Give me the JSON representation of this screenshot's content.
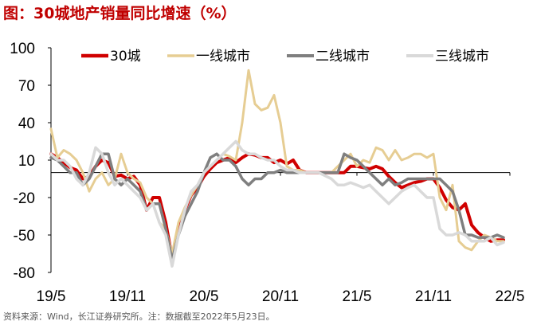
{
  "title": "图：30城地产销量同比增速（%）",
  "source": "资料来源：Wind，长江证券研究所。注：数据截至2022年5月23日。",
  "chart_data": {
    "type": "line",
    "title": "图：30城地产销量同比增速（%）",
    "xlabel": "",
    "ylabel": "",
    "ylim": [
      -80,
      100
    ],
    "yticks": [
      -80,
      -50,
      -20,
      10,
      40,
      70,
      100
    ],
    "xlim": [
      0,
      36
    ],
    "x_tick_labels": [
      {
        "x": 0,
        "label": "19/5"
      },
      {
        "x": 6,
        "label": "19/11"
      },
      {
        "x": 12,
        "label": "20/5"
      },
      {
        "x": 18,
        "label": "20/11"
      },
      {
        "x": 24,
        "label": "21/5"
      },
      {
        "x": 30,
        "label": "21/11"
      },
      {
        "x": 36,
        "label": "22/5"
      }
    ],
    "grid": false,
    "legend": "top",
    "series": [
      {
        "name": "30城",
        "color": "#d00000",
        "width": 4,
        "points": [
          [
            0,
            15
          ],
          [
            0.5,
            12
          ],
          [
            1,
            8
          ],
          [
            1.5,
            4
          ],
          [
            2,
            2
          ],
          [
            2.5,
            -5
          ],
          [
            3,
            -3
          ],
          [
            3.5,
            5
          ],
          [
            4,
            10
          ],
          [
            4.5,
            8
          ],
          [
            5,
            -3
          ],
          [
            5.5,
            -2
          ],
          [
            6,
            -5
          ],
          [
            6.5,
            -3
          ],
          [
            7,
            -10
          ],
          [
            7.5,
            -30
          ],
          [
            8,
            -20
          ],
          [
            8.5,
            -20
          ],
          [
            9,
            -40
          ],
          [
            9.5,
            -68
          ],
          [
            10,
            -45
          ],
          [
            10.5,
            -30
          ],
          [
            11,
            -18
          ],
          [
            11.5,
            -12
          ],
          [
            12,
            -3
          ],
          [
            12.5,
            3
          ],
          [
            13,
            8
          ],
          [
            13.5,
            10
          ],
          [
            14,
            12
          ],
          [
            14.5,
            8
          ],
          [
            15,
            12
          ],
          [
            15.5,
            15
          ],
          [
            16,
            14
          ],
          [
            16.5,
            12
          ],
          [
            17,
            12
          ],
          [
            17.5,
            8
          ],
          [
            18,
            10
          ],
          [
            18.5,
            7
          ],
          [
            19,
            10
          ],
          [
            19.5,
            2
          ],
          [
            20,
            0
          ],
          [
            21,
            0
          ],
          [
            22,
            0
          ],
          [
            23,
            0
          ],
          [
            23.5,
            5
          ],
          [
            24,
            5
          ],
          [
            24.5,
            4
          ],
          [
            25,
            3
          ],
          [
            25.5,
            5
          ],
          [
            26,
            3
          ],
          [
            26.5,
            -3
          ],
          [
            27,
            -8
          ],
          [
            27.5,
            -12
          ],
          [
            28,
            -10
          ],
          [
            28.5,
            -8
          ],
          [
            29,
            -7
          ],
          [
            29.5,
            -5
          ],
          [
            30,
            -5
          ],
          [
            30.5,
            -12
          ],
          [
            31,
            -22
          ],
          [
            31.5,
            -28
          ],
          [
            32,
            -30
          ],
          [
            32.5,
            -25
          ],
          [
            33,
            -42
          ],
          [
            33.5,
            -48
          ],
          [
            34,
            -52
          ],
          [
            34.5,
            -55
          ],
          [
            35,
            -54
          ],
          [
            35.5,
            -54
          ]
        ]
      },
      {
        "name": "一线城市",
        "color": "#e6cd93",
        "width": 3,
        "points": [
          [
            0,
            35
          ],
          [
            0.5,
            12
          ],
          [
            1,
            18
          ],
          [
            1.5,
            15
          ],
          [
            2,
            10
          ],
          [
            2.5,
            0
          ],
          [
            3,
            -15
          ],
          [
            3.5,
            -5
          ],
          [
            4,
            0
          ],
          [
            4.5,
            -10
          ],
          [
            5,
            -5
          ],
          [
            5.5,
            15
          ],
          [
            6,
            0
          ],
          [
            6.5,
            -5
          ],
          [
            7,
            -8
          ],
          [
            7.5,
            -20
          ],
          [
            8,
            -25
          ],
          [
            8.5,
            -40
          ],
          [
            9,
            -45
          ],
          [
            9.5,
            -65
          ],
          [
            10,
            -40
          ],
          [
            10.5,
            -28
          ],
          [
            11,
            -18
          ],
          [
            11.5,
            -10
          ],
          [
            12,
            0
          ],
          [
            12.5,
            5
          ],
          [
            13,
            10
          ],
          [
            13.5,
            15
          ],
          [
            14,
            13
          ],
          [
            14.5,
            10
          ],
          [
            15,
            40
          ],
          [
            15.5,
            82
          ],
          [
            16,
            55
          ],
          [
            16.5,
            50
          ],
          [
            17,
            52
          ],
          [
            17.5,
            62
          ],
          [
            18,
            40
          ],
          [
            18.5,
            5
          ],
          [
            19,
            2
          ],
          [
            19.5,
            2
          ],
          [
            20,
            0
          ],
          [
            21,
            0
          ],
          [
            22,
            0
          ],
          [
            22.5,
            5
          ],
          [
            23,
            10
          ],
          [
            23.5,
            15
          ],
          [
            24,
            5
          ],
          [
            24.5,
            10
          ],
          [
            25,
            8
          ],
          [
            25.5,
            20
          ],
          [
            26,
            18
          ],
          [
            26.5,
            10
          ],
          [
            27,
            18
          ],
          [
            27.5,
            10
          ],
          [
            28,
            12
          ],
          [
            28.5,
            15
          ],
          [
            29,
            15
          ],
          [
            29.5,
            12
          ],
          [
            30,
            15
          ],
          [
            30.5,
            -20
          ],
          [
            31,
            -30
          ],
          [
            31.5,
            -10
          ],
          [
            32,
            -55
          ],
          [
            32.5,
            -60
          ],
          [
            33,
            -62
          ],
          [
            33.5,
            -55
          ],
          [
            34,
            -50
          ],
          [
            34.5,
            -52
          ],
          [
            35,
            -55
          ],
          [
            35.5,
            -55
          ]
        ]
      },
      {
        "name": "二线城市",
        "color": "#7f7f7f",
        "width": 3.5,
        "points": [
          [
            0,
            12
          ],
          [
            0.5,
            10
          ],
          [
            1,
            5
          ],
          [
            1.5,
            0
          ],
          [
            2,
            0
          ],
          [
            2.5,
            -10
          ],
          [
            3,
            -5
          ],
          [
            3.5,
            5
          ],
          [
            4,
            15
          ],
          [
            4.5,
            15
          ],
          [
            5,
            -5
          ],
          [
            5.5,
            -10
          ],
          [
            6,
            -5
          ],
          [
            6.5,
            -10
          ],
          [
            7,
            -15
          ],
          [
            7.5,
            -30
          ],
          [
            8,
            -25
          ],
          [
            8.5,
            -25
          ],
          [
            9,
            -45
          ],
          [
            9.5,
            -70
          ],
          [
            10,
            -50
          ],
          [
            10.5,
            -35
          ],
          [
            11,
            -25
          ],
          [
            11.5,
            -15
          ],
          [
            12,
            0
          ],
          [
            12.5,
            12
          ],
          [
            13,
            15
          ],
          [
            13.5,
            10
          ],
          [
            14,
            10
          ],
          [
            14.5,
            5
          ],
          [
            15,
            -5
          ],
          [
            15.5,
            -10
          ],
          [
            16,
            -5
          ],
          [
            16.5,
            -5
          ],
          [
            17,
            0
          ],
          [
            17.5,
            0
          ],
          [
            18,
            2
          ],
          [
            18.5,
            0
          ],
          [
            19,
            0
          ],
          [
            19.5,
            0
          ],
          [
            20,
            0
          ],
          [
            21,
            0
          ],
          [
            22,
            0
          ],
          [
            22.5,
            0
          ],
          [
            23,
            15
          ],
          [
            23.5,
            12
          ],
          [
            24,
            10
          ],
          [
            24.5,
            5
          ],
          [
            25,
            0
          ],
          [
            25.5,
            -5
          ],
          [
            26,
            -10
          ],
          [
            26.5,
            -5
          ],
          [
            27,
            -10
          ],
          [
            27.5,
            -8
          ],
          [
            28,
            -5
          ],
          [
            28.5,
            -5
          ],
          [
            29,
            -5
          ],
          [
            29.5,
            -5
          ],
          [
            30,
            -5
          ],
          [
            30.5,
            -5
          ],
          [
            31,
            -10
          ],
          [
            31.5,
            -15
          ],
          [
            32,
            -30
          ],
          [
            32.5,
            -50
          ],
          [
            33,
            -50
          ],
          [
            33.5,
            -52
          ],
          [
            34,
            -52
          ],
          [
            34.5,
            -52
          ],
          [
            35,
            -50
          ],
          [
            35.5,
            -52
          ]
        ]
      },
      {
        "name": "三线城市",
        "color": "#d9d9d9",
        "width": 3.5,
        "points": [
          [
            0,
            15
          ],
          [
            0.5,
            10
          ],
          [
            1,
            10
          ],
          [
            1.5,
            5
          ],
          [
            2,
            -5
          ],
          [
            2.5,
            -10
          ],
          [
            3,
            0
          ],
          [
            3.5,
            20
          ],
          [
            4,
            15
          ],
          [
            4.5,
            0
          ],
          [
            5,
            -10
          ],
          [
            5.5,
            -5
          ],
          [
            6,
            -10
          ],
          [
            6.5,
            -15
          ],
          [
            7,
            -20
          ],
          [
            7.5,
            -30
          ],
          [
            8,
            -25
          ],
          [
            8.5,
            -40
          ],
          [
            9,
            -50
          ],
          [
            9.5,
            -75
          ],
          [
            10,
            -50
          ],
          [
            10.5,
            -30
          ],
          [
            11,
            -15
          ],
          [
            11.5,
            -10
          ],
          [
            12,
            0
          ],
          [
            12.5,
            5
          ],
          [
            13,
            10
          ],
          [
            13.5,
            15
          ],
          [
            14,
            20
          ],
          [
            14.5,
            25
          ],
          [
            15,
            18
          ],
          [
            15.5,
            15
          ],
          [
            16,
            15
          ],
          [
            16.5,
            12
          ],
          [
            17,
            10
          ],
          [
            17.5,
            10
          ],
          [
            18,
            5
          ],
          [
            18.5,
            2
          ],
          [
            19,
            2
          ],
          [
            19.5,
            0
          ],
          [
            20,
            0
          ],
          [
            21,
            0
          ],
          [
            22,
            -5
          ],
          [
            22.5,
            -10
          ],
          [
            23,
            -10
          ],
          [
            23.5,
            -8
          ],
          [
            24,
            -10
          ],
          [
            24.5,
            -12
          ],
          [
            25,
            -10
          ],
          [
            25.5,
            -15
          ],
          [
            26,
            -20
          ],
          [
            26.5,
            -25
          ],
          [
            27,
            -20
          ],
          [
            27.5,
            -15
          ],
          [
            28,
            -12
          ],
          [
            28.5,
            -10
          ],
          [
            29,
            -15
          ],
          [
            29.5,
            -20
          ],
          [
            30,
            -20
          ],
          [
            30.5,
            -45
          ],
          [
            31,
            -50
          ],
          [
            31.5,
            -50
          ],
          [
            32,
            -48
          ],
          [
            32.5,
            -50
          ],
          [
            33,
            -55
          ],
          [
            33.5,
            -55
          ],
          [
            34,
            -55
          ],
          [
            34.5,
            -52
          ],
          [
            35,
            -58
          ],
          [
            35.5,
            -56
          ]
        ]
      }
    ]
  }
}
